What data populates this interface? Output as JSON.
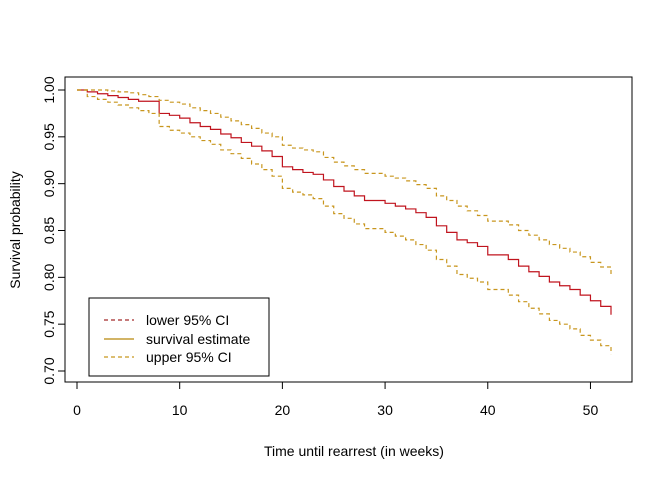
{
  "chart_data": {
    "type": "line",
    "title": "",
    "xlabel": "Time until rearrest (in weeks)",
    "ylabel": "Survival probability",
    "xlim": [
      0,
      52
    ],
    "ylim": [
      0.7,
      1.0
    ],
    "x_ticks": [
      "0",
      "10",
      "20",
      "30",
      "40",
      "50"
    ],
    "y_ticks": [
      "0.70",
      "0.75",
      "0.80",
      "0.85",
      "0.90",
      "0.95",
      "1.00"
    ],
    "grid": false,
    "legend": {
      "position": "bottom-left",
      "entries": [
        {
          "label": "lower 95% CI",
          "color": "#a52a2a",
          "dash": true
        },
        {
          "label": "survival estimate",
          "color": "#b8860b",
          "dash": false
        },
        {
          "label": "upper 95% CI",
          "color": "#c8961e",
          "dash": true
        }
      ]
    },
    "series": [
      {
        "role": "estimate",
        "color": "#c0141e",
        "dash": false,
        "step": true,
        "points": [
          [
            0,
            1.0
          ],
          [
            1,
            0.998
          ],
          [
            2,
            0.996
          ],
          [
            3,
            0.994
          ],
          [
            4,
            0.992
          ],
          [
            5,
            0.99
          ],
          [
            6,
            0.988
          ],
          [
            8,
            0.975
          ],
          [
            9,
            0.973
          ],
          [
            10,
            0.97
          ],
          [
            11,
            0.965
          ],
          [
            12,
            0.961
          ],
          [
            13,
            0.958
          ],
          [
            14,
            0.953
          ],
          [
            15,
            0.949
          ],
          [
            16,
            0.944
          ],
          [
            17,
            0.94
          ],
          [
            18,
            0.935
          ],
          [
            19,
            0.929
          ],
          [
            20,
            0.918
          ],
          [
            21,
            0.915
          ],
          [
            22,
            0.912
          ],
          [
            23,
            0.91
          ],
          [
            24,
            0.904
          ],
          [
            25,
            0.897
          ],
          [
            26,
            0.892
          ],
          [
            27,
            0.887
          ],
          [
            28,
            0.882
          ],
          [
            30,
            0.879
          ],
          [
            31,
            0.876
          ],
          [
            32,
            0.873
          ],
          [
            33,
            0.869
          ],
          [
            34,
            0.864
          ],
          [
            35,
            0.855
          ],
          [
            36,
            0.848
          ],
          [
            37,
            0.84
          ],
          [
            38,
            0.837
          ],
          [
            39,
            0.833
          ],
          [
            40,
            0.824
          ],
          [
            42,
            0.819
          ],
          [
            43,
            0.812
          ],
          [
            44,
            0.806
          ],
          [
            45,
            0.801
          ],
          [
            46,
            0.795
          ],
          [
            47,
            0.791
          ],
          [
            48,
            0.787
          ],
          [
            49,
            0.781
          ],
          [
            50,
            0.775
          ],
          [
            51,
            0.769
          ],
          [
            52,
            0.76
          ]
        ]
      },
      {
        "role": "lower",
        "color": "#c8961e",
        "dash": true,
        "step": true,
        "points": [
          [
            0,
            1.0
          ],
          [
            1,
            0.993
          ],
          [
            2,
            0.99
          ],
          [
            3,
            0.987
          ],
          [
            4,
            0.984
          ],
          [
            5,
            0.981
          ],
          [
            6,
            0.978
          ],
          [
            7,
            0.975
          ],
          [
            8,
            0.961
          ],
          [
            9,
            0.957
          ],
          [
            10,
            0.954
          ],
          [
            11,
            0.95
          ],
          [
            12,
            0.946
          ],
          [
            13,
            0.942
          ],
          [
            14,
            0.936
          ],
          [
            15,
            0.932
          ],
          [
            16,
            0.927
          ],
          [
            17,
            0.921
          ],
          [
            18,
            0.915
          ],
          [
            19,
            0.908
          ],
          [
            20,
            0.895
          ],
          [
            21,
            0.891
          ],
          [
            22,
            0.888
          ],
          [
            23,
            0.884
          ],
          [
            24,
            0.876
          ],
          [
            25,
            0.868
          ],
          [
            26,
            0.863
          ],
          [
            27,
            0.857
          ],
          [
            28,
            0.852
          ],
          [
            30,
            0.848
          ],
          [
            31,
            0.844
          ],
          [
            32,
            0.84
          ],
          [
            33,
            0.835
          ],
          [
            34,
            0.829
          ],
          [
            35,
            0.819
          ],
          [
            36,
            0.812
          ],
          [
            37,
            0.803
          ],
          [
            38,
            0.799
          ],
          [
            39,
            0.795
          ],
          [
            40,
            0.787
          ],
          [
            42,
            0.781
          ],
          [
            43,
            0.774
          ],
          [
            44,
            0.767
          ],
          [
            45,
            0.761
          ],
          [
            46,
            0.754
          ],
          [
            47,
            0.75
          ],
          [
            48,
            0.745
          ],
          [
            49,
            0.738
          ],
          [
            50,
            0.733
          ],
          [
            51,
            0.727
          ],
          [
            52,
            0.718
          ]
        ]
      },
      {
        "role": "upper",
        "color": "#c8961e",
        "dash": true,
        "step": true,
        "points": [
          [
            0,
            1.0
          ],
          [
            2,
            1.0
          ],
          [
            3,
            0.999
          ],
          [
            4,
            0.998
          ],
          [
            5,
            0.997
          ],
          [
            6,
            0.995
          ],
          [
            7,
            0.993
          ],
          [
            8,
            0.989
          ],
          [
            9,
            0.987
          ],
          [
            10,
            0.985
          ],
          [
            11,
            0.981
          ],
          [
            12,
            0.978
          ],
          [
            13,
            0.975
          ],
          [
            14,
            0.971
          ],
          [
            15,
            0.967
          ],
          [
            16,
            0.963
          ],
          [
            17,
            0.959
          ],
          [
            18,
            0.954
          ],
          [
            19,
            0.95
          ],
          [
            20,
            0.941
          ],
          [
            21,
            0.938
          ],
          [
            22,
            0.936
          ],
          [
            23,
            0.934
          ],
          [
            24,
            0.928
          ],
          [
            25,
            0.923
          ],
          [
            26,
            0.919
          ],
          [
            27,
            0.915
          ],
          [
            28,
            0.911
          ],
          [
            30,
            0.908
          ],
          [
            31,
            0.906
          ],
          [
            32,
            0.903
          ],
          [
            33,
            0.899
          ],
          [
            34,
            0.895
          ],
          [
            35,
            0.887
          ],
          [
            36,
            0.882
          ],
          [
            37,
            0.876
          ],
          [
            38,
            0.871
          ],
          [
            39,
            0.866
          ],
          [
            40,
            0.86
          ],
          [
            42,
            0.856
          ],
          [
            43,
            0.85
          ],
          [
            44,
            0.845
          ],
          [
            45,
            0.84
          ],
          [
            46,
            0.835
          ],
          [
            47,
            0.831
          ],
          [
            48,
            0.827
          ],
          [
            49,
            0.822
          ],
          [
            50,
            0.816
          ],
          [
            51,
            0.811
          ],
          [
            52,
            0.803
          ]
        ]
      }
    ]
  }
}
